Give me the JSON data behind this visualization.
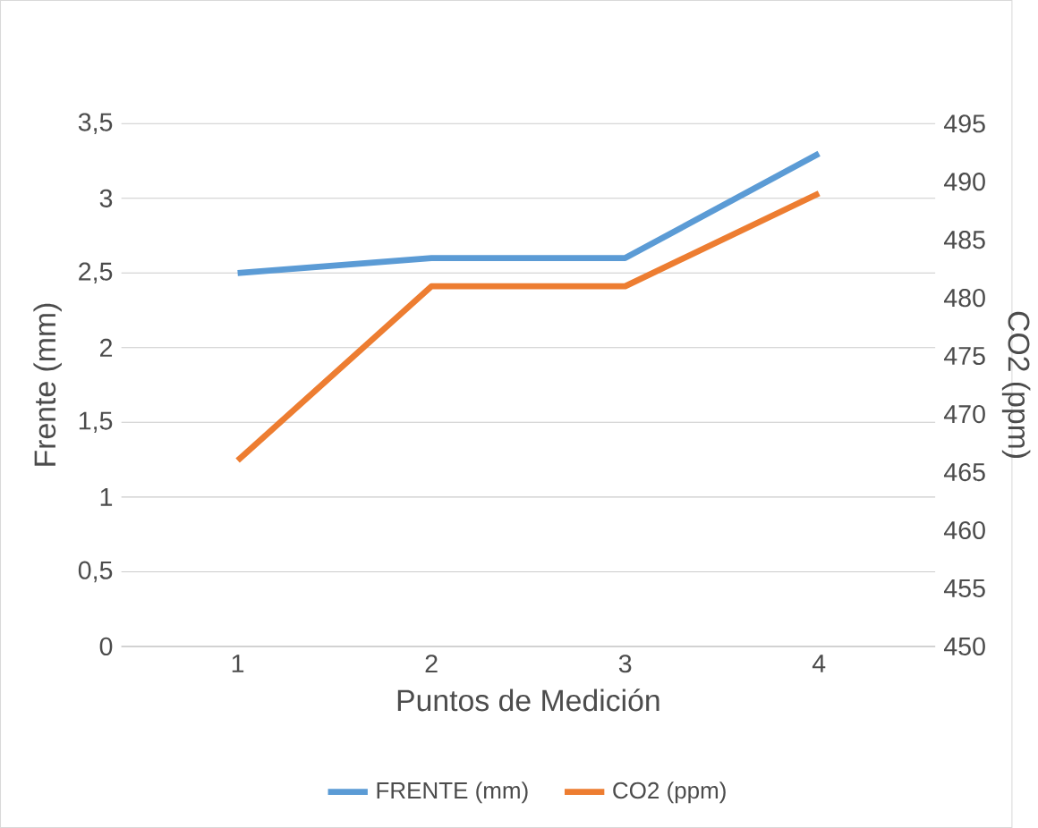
{
  "chart_data": {
    "type": "line",
    "xlabel": "Puntos de Medición",
    "ylabel": "Frente (mm)",
    "y2label": "CO2 (ppm)",
    "categories": [
      "1",
      "2",
      "3",
      "4"
    ],
    "series": [
      {
        "name": "FRENTE (mm)",
        "color": "#5b9bd5",
        "values": [
          2.5,
          2.6,
          2.6,
          3.3
        ]
      },
      {
        "name": "CO2 (ppm)",
        "color": "#ed7d31",
        "axis": "y2",
        "values": [
          466,
          481,
          481,
          489
        ]
      }
    ],
    "ylim": [
      0,
      3.5
    ],
    "yticks": [
      {
        "value": 0,
        "label": "0"
      },
      {
        "value": 0.5,
        "label": "0,5"
      },
      {
        "value": 1,
        "label": "1"
      },
      {
        "value": 1.5,
        "label": "1,5"
      },
      {
        "value": 2,
        "label": "2"
      },
      {
        "value": 2.5,
        "label": "2,5"
      },
      {
        "value": 3,
        "label": "3"
      },
      {
        "value": 3.5,
        "label": "3,5"
      }
    ],
    "y2lim": [
      450,
      495
    ],
    "y2ticks": [
      450,
      455,
      460,
      465,
      470,
      475,
      480,
      485,
      490,
      495
    ],
    "grid": "y",
    "legend": "bottom",
    "marker": "none",
    "line_style": "solid"
  }
}
